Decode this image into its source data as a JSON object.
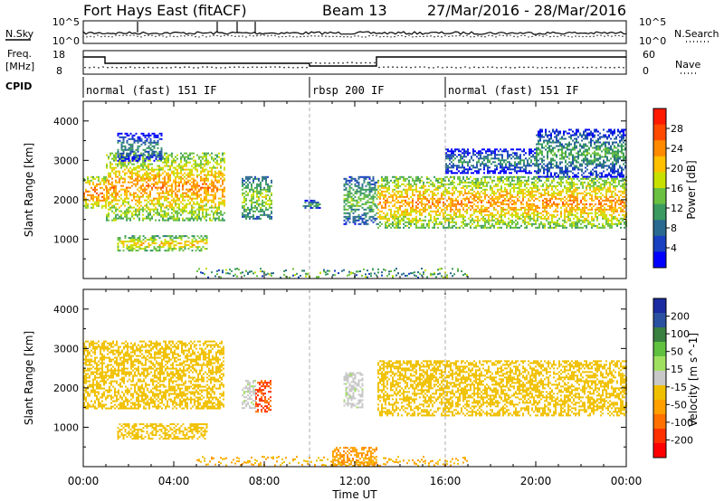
{
  "header": {
    "station": "Fort Hays East (fitACF)",
    "beam": "Beam 13",
    "date_range": "27/Mar/2016 - 28/Mar/2016"
  },
  "nsky": {
    "left_label": "N.Sky",
    "left_ticks": [
      "10^5",
      "10^0"
    ],
    "right_label": "N.Search",
    "right_ticks": [
      "10^5",
      "10^0"
    ]
  },
  "freq": {
    "left_label_1": "Freq.",
    "left_label_2": "[MHz]",
    "left_ticks": [
      "18",
      "8"
    ],
    "right_label": "Nave",
    "right_ticks": [
      "60",
      "0"
    ]
  },
  "cpid": {
    "label": "CPID",
    "segments": [
      {
        "start_hour": 0,
        "text": "normal (fast) 151 IF"
      },
      {
        "start_hour": 10,
        "text": "rbsp 200 IF"
      },
      {
        "start_hour": 16,
        "text": "normal (fast) 151 IF"
      }
    ]
  },
  "power_colorbar": {
    "title": "Power [dB]",
    "ticks": [
      "28",
      "24",
      "20",
      "16",
      "12",
      "8",
      "4"
    ],
    "colors": [
      "#ff1a00",
      "#ff4a00",
      "#ff8a00",
      "#ffc000",
      "#c8e000",
      "#6ac040",
      "#3a9a60",
      "#2a6a90",
      "#1840c0",
      "#0000ff"
    ]
  },
  "velocity_colorbar": {
    "title": "Velocity [m s^-1]",
    "ticks": [
      "200",
      "100",
      "50",
      "15",
      "-15",
      "-50",
      "-100",
      "-200"
    ],
    "colors": [
      "#1a2aa0",
      "#2a50a0",
      "#3a8040",
      "#60c040",
      "#a0e060",
      "#c8c8c8",
      "#f0c000",
      "#ffa000",
      "#ff7000",
      "#ff3000",
      "#ff0000"
    ]
  },
  "chart_data": [
    {
      "type": "heatmap",
      "title": "Power",
      "ylabel": "Slant Range [km]",
      "xlabel": "",
      "x_range_hours": [
        0,
        24
      ],
      "ylim": [
        0,
        4500
      ],
      "yticks": [
        "1000",
        "2000",
        "3000",
        "4000"
      ],
      "xticks": [
        "00:00",
        "04:00",
        "08:00",
        "12:00",
        "16:00",
        "20:00",
        "00:00"
      ],
      "echo_regions": [
        {
          "t_start": 0.0,
          "t_end": 1.0,
          "range_low": 1800,
          "range_high": 2600,
          "power_db": 22
        },
        {
          "t_start": 1.0,
          "t_end": 6.2,
          "range_low": 1500,
          "range_high": 3200,
          "power_db": 20
        },
        {
          "t_start": 1.5,
          "t_end": 5.5,
          "range_low": 700,
          "range_high": 1100,
          "power_db": 18
        },
        {
          "t_start": 1.5,
          "t_end": 3.5,
          "range_low": 3000,
          "range_high": 3700,
          "power_db": 8
        },
        {
          "t_start": 7.0,
          "t_end": 8.3,
          "range_low": 1500,
          "range_high": 2600,
          "power_db": 14
        },
        {
          "t_start": 9.7,
          "t_end": 10.5,
          "range_low": 1800,
          "range_high": 2000,
          "power_db": 10
        },
        {
          "t_start": 11.5,
          "t_end": 13.0,
          "range_low": 1400,
          "range_high": 2600,
          "power_db": 12
        },
        {
          "t_start": 13.0,
          "t_end": 24.0,
          "range_low": 1300,
          "range_high": 2600,
          "power_db": 20
        },
        {
          "t_start": 16.0,
          "t_end": 20.0,
          "range_low": 2700,
          "range_high": 3300,
          "power_db": 8
        },
        {
          "t_start": 20.0,
          "t_end": 24.0,
          "range_low": 2600,
          "range_high": 3800,
          "power_db": 10
        }
      ]
    },
    {
      "type": "heatmap",
      "title": "Velocity",
      "ylabel": "Slant Range [km]",
      "xlabel": "Time UT",
      "x_range_hours": [
        0,
        24
      ],
      "ylim": [
        0,
        4500
      ],
      "yticks": [
        "1000",
        "2000",
        "3000",
        "4000"
      ],
      "xticks": [
        "00:00",
        "04:00",
        "08:00",
        "12:00",
        "16:00",
        "20:00",
        "00:00"
      ],
      "echo_regions": [
        {
          "t_start": 0.0,
          "t_end": 6.2,
          "range_low": 1500,
          "range_high": 3200,
          "velocity_ms": 0
        },
        {
          "t_start": 1.5,
          "t_end": 5.5,
          "range_low": 700,
          "range_high": 1100,
          "velocity_ms": 0
        },
        {
          "t_start": 7.0,
          "t_end": 7.6,
          "range_low": 1500,
          "range_high": 2200,
          "velocity_ms": 40
        },
        {
          "t_start": 7.6,
          "t_end": 8.3,
          "range_low": 1400,
          "range_high": 2200,
          "velocity_ms": -80
        },
        {
          "t_start": 11.5,
          "t_end": 12.3,
          "range_low": 1500,
          "range_high": 2400,
          "velocity_ms": 40
        },
        {
          "t_start": 11.0,
          "t_end": 13.0,
          "range_low": 0,
          "range_high": 500,
          "velocity_ms": -40
        },
        {
          "t_start": 13.0,
          "t_end": 24.0,
          "range_low": 1300,
          "range_high": 2700,
          "velocity_ms": 0
        }
      ]
    }
  ]
}
